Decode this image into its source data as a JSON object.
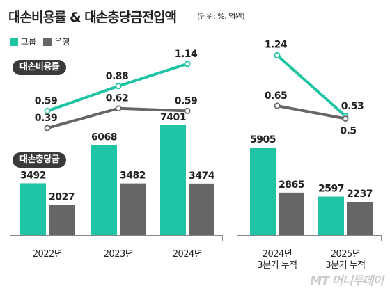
{
  "title": "대손비용률 & 대손충당금전입액",
  "unit": "(단위: %, 억원)",
  "legend": [
    {
      "label": "그룹",
      "color": "#1fc4a4"
    },
    {
      "label": "은행",
      "color": "#666666"
    }
  ],
  "watermark": "MT 머니투데이",
  "chart_data": [
    {
      "type": "line",
      "title": "대손비용률",
      "categories": [
        "2022년",
        "2023년",
        "2024년",
        "2024년 3분기 누적",
        "2025년 3분기 누적"
      ],
      "series": [
        {
          "name": "그룹",
          "values": [
            0.59,
            0.88,
            1.14,
            1.24,
            0.53
          ]
        },
        {
          "name": "은행",
          "values": [
            0.39,
            0.62,
            0.59,
            0.65,
            0.5
          ]
        }
      ],
      "labels": {
        "그룹": [
          "0.59",
          "0.88",
          "1.14",
          "1.24",
          "0.53"
        ],
        "은행": [
          "0.39",
          "0.62",
          "0.59",
          "0.65",
          "0.5"
        ]
      }
    },
    {
      "type": "bar",
      "title": "대손충당금",
      "categories": [
        "2022년",
        "2023년",
        "2024년",
        "2024년 3분기 누적",
        "2025년 3분기 누적"
      ],
      "series": [
        {
          "name": "그룹",
          "values": [
            3492,
            6068,
            7401,
            5905,
            2597
          ]
        },
        {
          "name": "은행",
          "values": [
            2027,
            3482,
            3474,
            2865,
            2237
          ]
        }
      ]
    }
  ]
}
